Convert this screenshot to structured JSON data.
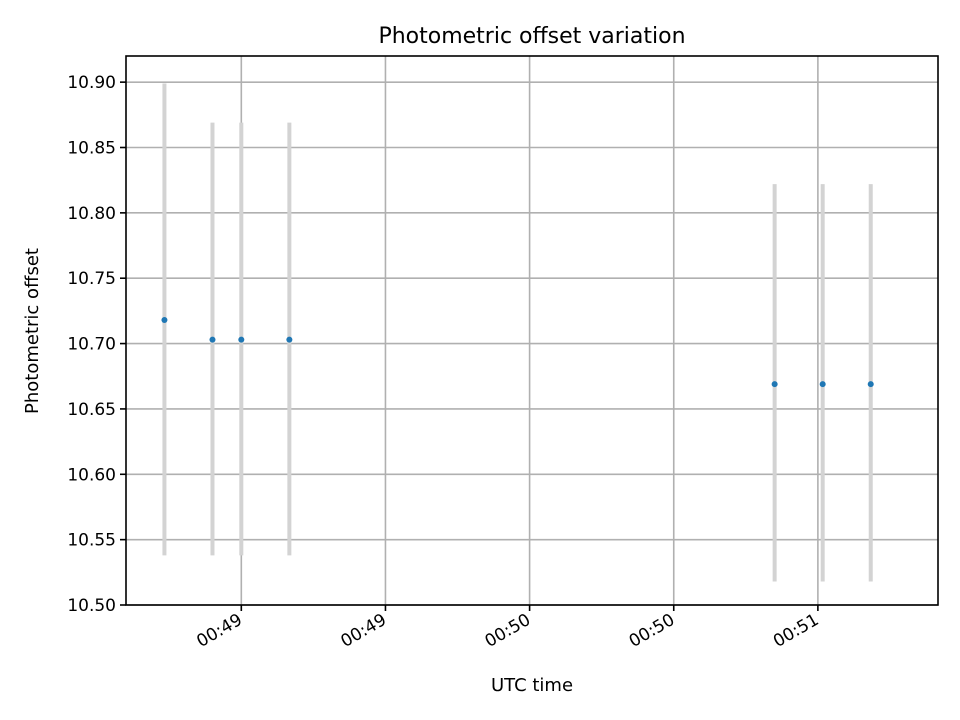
{
  "chart_data": {
    "type": "scatter",
    "title": "Photometric offset variation",
    "xlabel": "UTC time",
    "ylabel": "Photometric offset",
    "ylim": [
      10.5,
      10.92
    ],
    "yticks": [
      "10.50",
      "10.55",
      "10.60",
      "10.65",
      "10.70",
      "10.75",
      "10.80",
      "10.85",
      "10.90"
    ],
    "xlim": [
      "00:48:31",
      "00:51:20"
    ],
    "xticks": [
      {
        "time": "00:48:55",
        "label": "00:49"
      },
      {
        "time": "00:49:25",
        "label": "00:49"
      },
      {
        "time": "00:49:55",
        "label": "00:50"
      },
      {
        "time": "00:50:25",
        "label": "00:50"
      },
      {
        "time": "00:50:55",
        "label": "00:51"
      }
    ],
    "grid": true,
    "legend": "none",
    "colors": {
      "points": "#1f77b4",
      "errorbars": "#d3d3d3"
    },
    "points": [
      {
        "x": "00:48:39",
        "y": 10.718,
        "ylow": 10.538,
        "yhigh": 10.899
      },
      {
        "x": "00:48:49",
        "y": 10.703,
        "ylow": 10.538,
        "yhigh": 10.869
      },
      {
        "x": "00:48:55",
        "y": 10.703,
        "ylow": 10.538,
        "yhigh": 10.869
      },
      {
        "x": "00:49:05",
        "y": 10.703,
        "ylow": 10.538,
        "yhigh": 10.869
      },
      {
        "x": "00:50:46",
        "y": 10.669,
        "ylow": 10.518,
        "yhigh": 10.822
      },
      {
        "x": "00:50:56",
        "y": 10.669,
        "ylow": 10.518,
        "yhigh": 10.822
      },
      {
        "x": "00:51:06",
        "y": 10.669,
        "ylow": 10.518,
        "yhigh": 10.822
      }
    ]
  }
}
